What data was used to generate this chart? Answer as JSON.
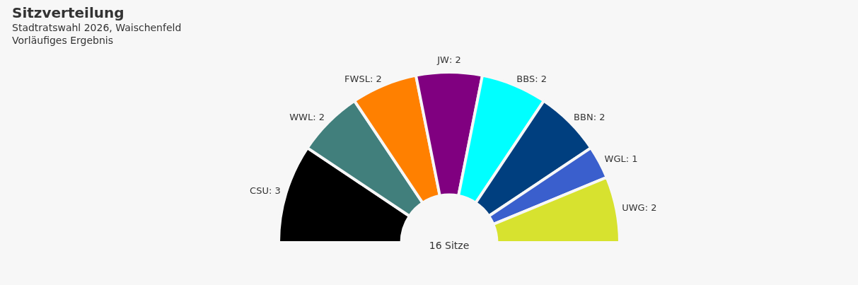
{
  "chart_data": {
    "type": "donut",
    "title": "Sitzverteilung",
    "subtitle": "Stadtratswahl 2026, Waischenfeld\nVorläufiges Ergebnis",
    "categories": [
      "CSU",
      "WWL",
      "FWSL",
      "JW",
      "BBS",
      "BBN",
      "WGL",
      "UWG"
    ],
    "values": [
      3,
      2,
      2,
      2,
      2,
      2,
      1,
      2
    ],
    "colors": [
      "#000000",
      "#417f7c",
      "#ff8000",
      "#800080",
      "#00ffff",
      "#003f7f",
      "#3a5fcd",
      "#d7e22f"
    ],
    "value_labels": [
      ": 3",
      ": 2",
      ": 2",
      ": 2",
      ": 2",
      ": 2",
      ": 1",
      ": 2"
    ],
    "legend": false,
    "annotations": [
      "16 Sitze"
    ]
  }
}
